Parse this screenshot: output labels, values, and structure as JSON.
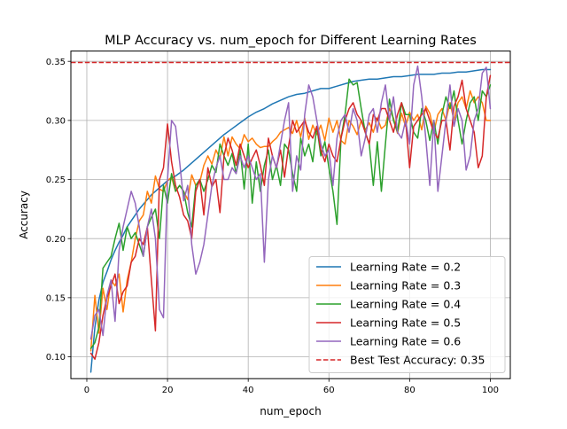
{
  "chart_data": {
    "type": "line",
    "title": "MLP Accuracy vs. num_epoch for Different Learning Rates",
    "xlabel": "num_epoch",
    "ylabel": "Accuracy",
    "xlim": [
      -3.95,
      104.95
    ],
    "ylim": [
      0.0815,
      0.3587
    ],
    "xticks": [
      0,
      20,
      40,
      60,
      80,
      100
    ],
    "yticks": [
      0.1,
      0.15,
      0.2,
      0.25,
      0.3,
      0.35
    ],
    "xtick_labels": [
      "0",
      "20",
      "40",
      "60",
      "80",
      "100"
    ],
    "ytick_labels": [
      "0.10",
      "0.15",
      "0.20",
      "0.25",
      "0.30",
      "0.35"
    ],
    "grid": true,
    "legend_position": "lower-right",
    "series": [
      {
        "name": "Learning Rate = 0.2",
        "color": "#1f77b4",
        "x": [
          1,
          2,
          3,
          4,
          5,
          6,
          7,
          8,
          9,
          10,
          11,
          12,
          13,
          14,
          15,
          16,
          17,
          18,
          19,
          20,
          22,
          24,
          26,
          28,
          30,
          32,
          34,
          36,
          38,
          40,
          42,
          44,
          46,
          48,
          50,
          52,
          54,
          56,
          58,
          60,
          62,
          64,
          66,
          68,
          70,
          72,
          74,
          76,
          78,
          80,
          82,
          84,
          86,
          88,
          90,
          92,
          94,
          96,
          98,
          100
        ],
        "y": [
          0.087,
          0.125,
          0.148,
          0.163,
          0.172,
          0.182,
          0.19,
          0.197,
          0.203,
          0.21,
          0.215,
          0.22,
          0.225,
          0.229,
          0.233,
          0.237,
          0.24,
          0.243,
          0.246,
          0.249,
          0.253,
          0.258,
          0.264,
          0.27,
          0.276,
          0.282,
          0.288,
          0.293,
          0.298,
          0.303,
          0.307,
          0.31,
          0.314,
          0.317,
          0.32,
          0.322,
          0.323,
          0.325,
          0.327,
          0.327,
          0.329,
          0.331,
          0.333,
          0.334,
          0.335,
          0.335,
          0.336,
          0.337,
          0.337,
          0.338,
          0.339,
          0.339,
          0.339,
          0.34,
          0.34,
          0.341,
          0.341,
          0.342,
          0.343,
          0.343
        ]
      },
      {
        "name": "Learning Rate = 0.3",
        "color": "#ff7f0e",
        "x": [
          1,
          2,
          3,
          4,
          5,
          6,
          7,
          8,
          9,
          10,
          11,
          12,
          13,
          14,
          15,
          16,
          17,
          18,
          19,
          20,
          21,
          22,
          23,
          24,
          25,
          26,
          27,
          28,
          29,
          30,
          31,
          32,
          33,
          34,
          35,
          36,
          37,
          38,
          39,
          40,
          41,
          42,
          43,
          44,
          45,
          46,
          47,
          48,
          49,
          50,
          51,
          52,
          53,
          54,
          55,
          56,
          57,
          58,
          59,
          60,
          61,
          62,
          63,
          64,
          65,
          66,
          67,
          68,
          69,
          70,
          71,
          72,
          73,
          74,
          75,
          76,
          77,
          78,
          79,
          80,
          81,
          82,
          83,
          84,
          85,
          86,
          87,
          88,
          89,
          90,
          91,
          92,
          93,
          94,
          95,
          96,
          97,
          98,
          99,
          100
        ],
        "y": [
          0.105,
          0.152,
          0.12,
          0.158,
          0.14,
          0.165,
          0.16,
          0.17,
          0.138,
          0.165,
          0.18,
          0.2,
          0.215,
          0.22,
          0.24,
          0.23,
          0.253,
          0.242,
          0.24,
          0.249,
          0.252,
          0.24,
          0.245,
          0.24,
          0.233,
          0.254,
          0.245,
          0.248,
          0.262,
          0.27,
          0.263,
          0.275,
          0.268,
          0.286,
          0.27,
          0.286,
          0.28,
          0.276,
          0.288,
          0.282,
          0.285,
          0.28,
          0.277,
          0.278,
          0.278,
          0.282,
          0.285,
          0.29,
          0.292,
          0.294,
          0.289,
          0.3,
          0.286,
          0.302,
          0.284,
          0.296,
          0.288,
          0.296,
          0.283,
          0.302,
          0.29,
          0.3,
          0.283,
          0.28,
          0.3,
          0.295,
          0.288,
          0.3,
          0.292,
          0.298,
          0.29,
          0.302,
          0.293,
          0.296,
          0.31,
          0.302,
          0.289,
          0.306,
          0.295,
          0.307,
          0.3,
          0.305,
          0.292,
          0.312,
          0.306,
          0.29,
          0.305,
          0.31,
          0.3,
          0.315,
          0.3,
          0.315,
          0.32,
          0.31,
          0.325,
          0.315,
          0.32,
          0.315,
          0.3,
          0.3
        ]
      },
      {
        "name": "Learning Rate = 0.4",
        "color": "#2ca02c",
        "x": [
          1,
          2,
          3,
          4,
          5,
          6,
          7,
          8,
          9,
          10,
          11,
          12,
          13,
          14,
          15,
          16,
          17,
          18,
          19,
          20,
          21,
          22,
          23,
          24,
          25,
          26,
          27,
          28,
          29,
          30,
          31,
          32,
          33,
          34,
          35,
          36,
          37,
          38,
          39,
          40,
          41,
          42,
          43,
          44,
          45,
          46,
          47,
          48,
          49,
          50,
          51,
          52,
          53,
          54,
          55,
          56,
          57,
          58,
          59,
          60,
          61,
          62,
          63,
          64,
          65,
          66,
          67,
          68,
          69,
          70,
          71,
          72,
          73,
          74,
          75,
          76,
          77,
          78,
          79,
          80,
          81,
          82,
          83,
          84,
          85,
          86,
          87,
          88,
          89,
          90,
          91,
          92,
          93,
          94,
          95,
          96,
          97,
          98,
          99,
          100
        ],
        "y": [
          0.107,
          0.112,
          0.125,
          0.175,
          0.18,
          0.185,
          0.2,
          0.213,
          0.19,
          0.21,
          0.2,
          0.205,
          0.195,
          0.185,
          0.21,
          0.218,
          0.225,
          0.2,
          0.245,
          0.23,
          0.255,
          0.24,
          0.245,
          0.24,
          0.222,
          0.21,
          0.245,
          0.25,
          0.24,
          0.25,
          0.262,
          0.256,
          0.28,
          0.27,
          0.262,
          0.272,
          0.255,
          0.275,
          0.242,
          0.28,
          0.23,
          0.265,
          0.24,
          0.262,
          0.275,
          0.25,
          0.262,
          0.245,
          0.28,
          0.275,
          0.255,
          0.24,
          0.285,
          0.27,
          0.28,
          0.265,
          0.295,
          0.27,
          0.282,
          0.26,
          0.24,
          0.212,
          0.285,
          0.305,
          0.335,
          0.33,
          0.332,
          0.31,
          0.29,
          0.28,
          0.245,
          0.282,
          0.24,
          0.28,
          0.318,
          0.3,
          0.29,
          0.315,
          0.305,
          0.305,
          0.29,
          0.285,
          0.31,
          0.3,
          0.283,
          0.3,
          0.28,
          0.305,
          0.32,
          0.31,
          0.325,
          0.3,
          0.28,
          0.3,
          0.315,
          0.32,
          0.3,
          0.325,
          0.32,
          0.33
        ]
      },
      {
        "name": "Learning Rate = 0.5",
        "color": "#d62728",
        "x": [
          1,
          2,
          3,
          4,
          5,
          6,
          7,
          8,
          9,
          10,
          11,
          12,
          13,
          14,
          15,
          16,
          17,
          18,
          19,
          20,
          21,
          22,
          23,
          24,
          25,
          26,
          27,
          28,
          29,
          30,
          31,
          32,
          33,
          34,
          35,
          36,
          37,
          38,
          39,
          40,
          41,
          42,
          43,
          44,
          45,
          46,
          47,
          48,
          49,
          50,
          51,
          52,
          53,
          54,
          55,
          56,
          57,
          58,
          59,
          60,
          61,
          62,
          63,
          64,
          65,
          66,
          67,
          68,
          69,
          70,
          71,
          72,
          73,
          74,
          75,
          76,
          77,
          78,
          79,
          80,
          81,
          82,
          83,
          84,
          85,
          86,
          87,
          88,
          89,
          90,
          91,
          92,
          93,
          94,
          95,
          96,
          97,
          98,
          99,
          100
        ],
        "y": [
          0.103,
          0.098,
          0.112,
          0.135,
          0.15,
          0.16,
          0.17,
          0.145,
          0.155,
          0.16,
          0.18,
          0.185,
          0.2,
          0.195,
          0.21,
          0.165,
          0.122,
          0.25,
          0.26,
          0.297,
          0.265,
          0.245,
          0.235,
          0.22,
          0.215,
          0.2,
          0.24,
          0.25,
          0.22,
          0.26,
          0.244,
          0.25,
          0.222,
          0.27,
          0.285,
          0.275,
          0.262,
          0.28,
          0.27,
          0.26,
          0.268,
          0.275,
          0.262,
          0.245,
          0.285,
          0.27,
          0.26,
          0.275,
          0.252,
          0.278,
          0.3,
          0.29,
          0.295,
          0.3,
          0.29,
          0.285,
          0.295,
          0.275,
          0.265,
          0.28,
          0.27,
          0.265,
          0.285,
          0.3,
          0.31,
          0.315,
          0.305,
          0.3,
          0.29,
          0.28,
          0.305,
          0.3,
          0.31,
          0.31,
          0.3,
          0.29,
          0.305,
          0.315,
          0.3,
          0.26,
          0.295,
          0.3,
          0.305,
          0.31,
          0.3,
          0.29,
          0.285,
          0.3,
          0.3,
          0.275,
          0.312,
          0.32,
          0.334,
          0.31,
          0.3,
          0.29,
          0.26,
          0.27,
          0.32,
          0.338
        ]
      },
      {
        "name": "Learning Rate = 0.6",
        "color": "#9467bd",
        "x": [
          1,
          2,
          3,
          4,
          5,
          6,
          7,
          8,
          9,
          10,
          11,
          12,
          13,
          14,
          15,
          16,
          17,
          18,
          19,
          20,
          21,
          22,
          23,
          24,
          25,
          26,
          27,
          28,
          29,
          30,
          31,
          32,
          33,
          34,
          35,
          36,
          37,
          38,
          39,
          40,
          41,
          42,
          43,
          44,
          45,
          46,
          47,
          48,
          49,
          50,
          51,
          52,
          53,
          54,
          55,
          56,
          57,
          58,
          59,
          60,
          61,
          62,
          63,
          64,
          65,
          66,
          67,
          68,
          69,
          70,
          71,
          72,
          73,
          74,
          75,
          76,
          77,
          78,
          79,
          80,
          81,
          82,
          83,
          84,
          85,
          86,
          87,
          88,
          89,
          90,
          91,
          92,
          93,
          94,
          95,
          96,
          97,
          98,
          99,
          100
        ],
        "y": [
          0.115,
          0.135,
          0.14,
          0.118,
          0.152,
          0.165,
          0.13,
          0.19,
          0.21,
          0.225,
          0.24,
          0.23,
          0.21,
          0.185,
          0.21,
          0.225,
          0.2,
          0.14,
          0.133,
          0.25,
          0.3,
          0.295,
          0.265,
          0.232,
          0.245,
          0.195,
          0.17,
          0.18,
          0.195,
          0.22,
          0.245,
          0.26,
          0.27,
          0.25,
          0.25,
          0.26,
          0.255,
          0.27,
          0.26,
          0.27,
          0.26,
          0.25,
          0.255,
          0.18,
          0.25,
          0.27,
          0.26,
          0.28,
          0.3,
          0.315,
          0.24,
          0.27,
          0.258,
          0.305,
          0.33,
          0.32,
          0.3,
          0.28,
          0.27,
          0.275,
          0.245,
          0.285,
          0.3,
          0.305,
          0.29,
          0.31,
          0.3,
          0.27,
          0.285,
          0.305,
          0.31,
          0.29,
          0.315,
          0.33,
          0.3,
          0.32,
          0.29,
          0.285,
          0.3,
          0.28,
          0.33,
          0.346,
          0.32,
          0.285,
          0.245,
          0.3,
          0.24,
          0.27,
          0.3,
          0.33,
          0.295,
          0.31,
          0.3,
          0.258,
          0.27,
          0.3,
          0.31,
          0.34,
          0.345,
          0.31
        ]
      }
    ],
    "reference_line": {
      "name": "Best Test Accuracy: 0.35",
      "y": 0.349,
      "color": "#d62728",
      "style": "dashed"
    }
  }
}
